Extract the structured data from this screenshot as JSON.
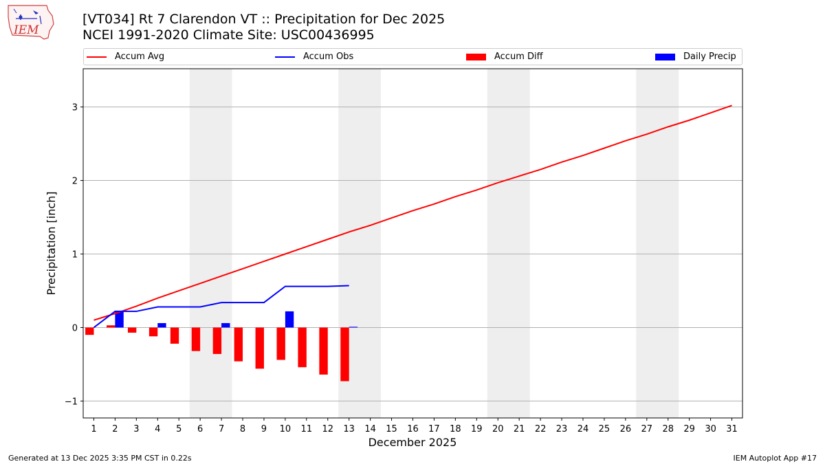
{
  "header": {
    "title_line1": "[VT034] Rt 7 Clarendon  VT :: Precipitation for Dec 2025",
    "title_line2": "NCEI 1991-2020 Climate Site: USC00436995",
    "logo_text": "IEM"
  },
  "footer": {
    "generated": "Generated at 13 Dec 2025 3:35 PM CST in 0.22s",
    "app": "IEM Autoplot App #17"
  },
  "colors": {
    "avg": "#ff0000",
    "obs": "#0000ff",
    "diff": "#ff0000",
    "daily": "#0000ff",
    "weekend": "#eeeeee",
    "grid": "#b0b0b0"
  },
  "chart_data": {
    "type": "line",
    "xlabel": "December 2025",
    "ylabel": "Precipitation [inch]",
    "xlim": [
      0.5,
      31.5
    ],
    "ylim": [
      -1.23,
      3.52
    ],
    "y_ticks": [
      -1,
      0,
      1,
      2,
      3
    ],
    "y_tick_labels": [
      "−1",
      "0",
      "1",
      "2",
      "3"
    ],
    "x_ticks": [
      1,
      2,
      3,
      4,
      5,
      6,
      7,
      8,
      9,
      10,
      11,
      12,
      13,
      14,
      15,
      16,
      17,
      18,
      19,
      20,
      21,
      22,
      23,
      24,
      25,
      26,
      27,
      28,
      29,
      30,
      31
    ],
    "grid": "horizontal",
    "weekend_spans": [
      [
        5.5,
        7.5
      ],
      [
        12.5,
        14.5
      ],
      [
        19.5,
        21.5
      ],
      [
        26.5,
        28.5
      ]
    ],
    "legend": [
      "Accum Avg",
      "Accum Obs",
      "Accum Diff",
      "Daily Precip"
    ],
    "days": [
      1,
      2,
      3,
      4,
      5,
      6,
      7,
      8,
      9,
      10,
      11,
      12,
      13,
      14,
      15,
      16,
      17,
      18,
      19,
      20,
      21,
      22,
      23,
      24,
      25,
      26,
      27,
      28,
      29,
      30,
      31
    ],
    "accum_avg": [
      0.1,
      0.19,
      0.29,
      0.4,
      0.5,
      0.6,
      0.7,
      0.8,
      0.9,
      1.0,
      1.1,
      1.2,
      1.3,
      1.39,
      1.49,
      1.59,
      1.68,
      1.78,
      1.87,
      1.97,
      2.06,
      2.15,
      2.25,
      2.34,
      2.44,
      2.54,
      2.63,
      2.73,
      2.82,
      2.92,
      3.02
    ],
    "obs_days": [
      1,
      2,
      3,
      4,
      5,
      6,
      7,
      8,
      9,
      10,
      11,
      12,
      13
    ],
    "accum_obs": [
      0.0,
      0.22,
      0.22,
      0.28,
      0.28,
      0.28,
      0.34,
      0.34,
      0.34,
      0.56,
      0.56,
      0.56,
      0.57
    ],
    "accum_diff": [
      -0.1,
      0.03,
      -0.07,
      -0.12,
      -0.22,
      -0.32,
      -0.36,
      -0.46,
      -0.56,
      -0.44,
      -0.54,
      -0.64,
      -0.73
    ],
    "daily_precip": [
      0.0,
      0.22,
      0.0,
      0.06,
      0.0,
      0.0,
      0.06,
      0.0,
      0.0,
      0.22,
      0.0,
      0.0,
      0.01
    ]
  }
}
